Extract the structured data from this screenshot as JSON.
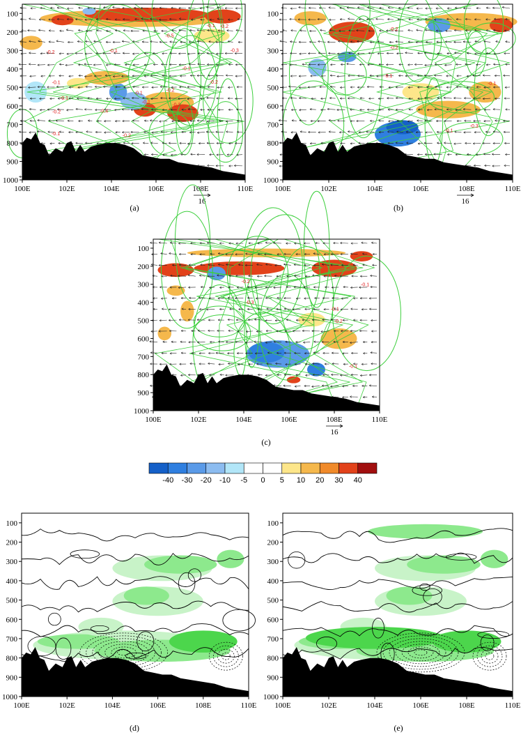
{
  "figure": {
    "panels": [
      {
        "id": "a",
        "label": "(a)",
        "kind": "vector-shaded",
        "has_vector_ref": true
      },
      {
        "id": "b",
        "label": "(b)",
        "kind": "vector-shaded",
        "has_vector_ref": true
      },
      {
        "id": "c",
        "label": "(c)",
        "kind": "vector-shaded",
        "has_vector_ref": true
      },
      {
        "id": "d",
        "label": "(d)",
        "kind": "contour-green",
        "has_vector_ref": false
      },
      {
        "id": "e",
        "label": "(e)",
        "kind": "contour-green",
        "has_vector_ref": false
      }
    ],
    "vector_reference_label": "16",
    "colorbar": {
      "labels": [
        "-40",
        "-30",
        "-20",
        "-10",
        "-5",
        "0",
        "5",
        "10",
        "20",
        "30",
        "40"
      ],
      "colors": [
        "#1560c8",
        "#2f7fe0",
        "#5a9ae8",
        "#8cbcf0",
        "#b2e6f8",
        "#ffffff",
        "#ffffff",
        "#fde68a",
        "#f5b84c",
        "#f08a2a",
        "#e2421a",
        "#a10f0f"
      ]
    },
    "colors": {
      "terrain": "#000000",
      "green_line": "#3ccf3c",
      "vector": "#222222",
      "red_label": "#e01818",
      "green_shade_light": "#c8f3c8",
      "green_shade_mid": "#8de98d",
      "green_shade_dark": "#4cd64c"
    }
  },
  "chart_data": [
    {
      "type": "vector-cross-section",
      "panel": "a",
      "x_ticks": [
        "100E",
        "102E",
        "104E",
        "106E",
        "108E",
        "110E"
      ],
      "y_ticks": [
        "100",
        "200",
        "300",
        "400",
        "500",
        "600",
        "700",
        "800",
        "900",
        "1000"
      ],
      "xlim": [
        100,
        110
      ],
      "ylim": [
        1000,
        50
      ],
      "contour_labels": [
        "-0.1",
        "-0.1",
        "-0.2",
        "-0.1",
        "-0.1",
        "-0.2",
        "-0.3",
        "-0.2",
        "-0.1",
        "-0.3",
        "-0.2",
        "-0.1",
        "-0.2",
        "-0.1",
        "-0.5",
        "-0.4",
        "-0.1",
        "-0.2"
      ]
    },
    {
      "type": "vector-cross-section",
      "panel": "b",
      "x_ticks": [
        "100E",
        "102E",
        "104E",
        "106E",
        "108E",
        "110E"
      ],
      "y_ticks": [
        "100",
        "200",
        "300",
        "400",
        "500",
        "600",
        "700",
        "800",
        "900",
        "1000"
      ],
      "xlim": [
        100,
        110
      ],
      "ylim": [
        1000,
        50
      ]
    },
    {
      "type": "vector-cross-section",
      "panel": "c",
      "x_ticks": [
        "100E",
        "102E",
        "104E",
        "106E",
        "108E",
        "110E"
      ],
      "y_ticks": [
        "100",
        "200",
        "300",
        "400",
        "500",
        "600",
        "700",
        "800",
        "900",
        "1000"
      ],
      "xlim": [
        100,
        110
      ],
      "ylim": [
        1000,
        50
      ]
    },
    {
      "type": "contour-cross-section",
      "panel": "d",
      "x_ticks": [
        "100E",
        "102E",
        "104E",
        "106E",
        "108E",
        "110E"
      ],
      "y_ticks": [
        "100",
        "200",
        "300",
        "400",
        "500",
        "600",
        "700",
        "800",
        "900",
        "1000"
      ],
      "xlim": [
        100,
        110
      ],
      "ylim": [
        1000,
        50
      ]
    },
    {
      "type": "contour-cross-section",
      "panel": "e",
      "x_ticks": [
        "100E",
        "102E",
        "104E",
        "106E",
        "108E",
        "110E"
      ],
      "y_ticks": [
        "100",
        "200",
        "300",
        "400",
        "500",
        "600",
        "700",
        "800",
        "900",
        "1000"
      ],
      "xlim": [
        100,
        110
      ],
      "ylim": [
        1000,
        50
      ]
    }
  ]
}
